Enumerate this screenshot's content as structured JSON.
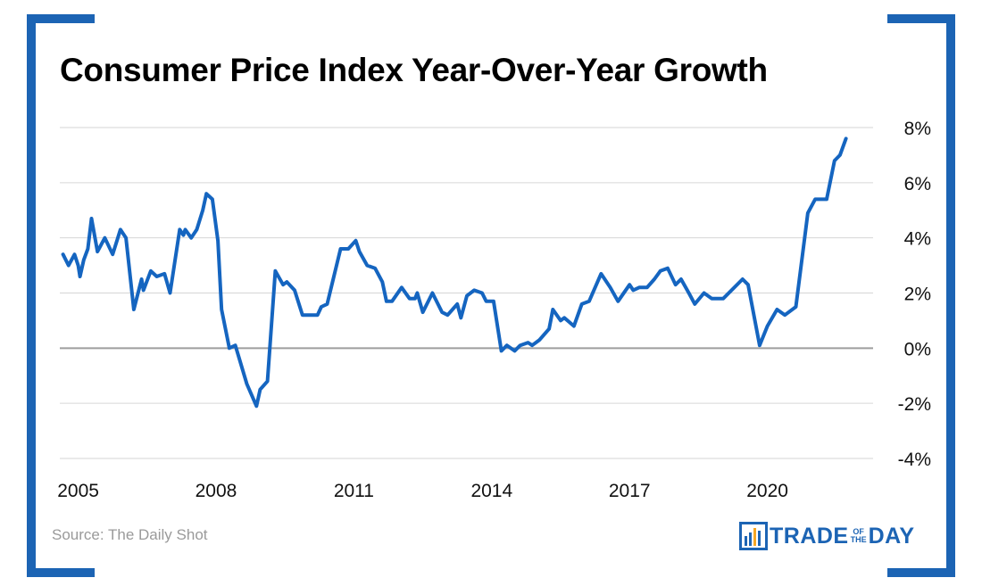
{
  "title": "Consumer Price Index Year-Over-Year Growth",
  "source": "Source: The Daily Shot",
  "logo": {
    "word1": "TRADE",
    "small1": "OF",
    "small2": "THE",
    "word2": "DAY",
    "icon": "bar-chart-logo-icon"
  },
  "colors": {
    "accent": "#1c64b4",
    "line": "#1565c0",
    "grid": "#d6d6d6",
    "zero_line": "#9e9e9e"
  },
  "chart_data": {
    "type": "line",
    "xlabel": "",
    "ylabel": "",
    "ylim": [
      -4,
      8
    ],
    "xlim": [
      2004.6,
      2022.3
    ],
    "y_ticks": [
      8,
      6,
      4,
      2,
      0,
      -2,
      -4
    ],
    "y_tick_labels": [
      "8%",
      "6%",
      "4%",
      "2%",
      "0%",
      "-2%",
      "-4%"
    ],
    "x_ticks": [
      2005,
      2008,
      2011,
      2014,
      2017,
      2020
    ],
    "x_tick_labels": [
      "2005",
      "2008",
      "2011",
      "2014",
      "2017",
      "2020"
    ],
    "grid": true,
    "legend": "none",
    "series": [
      {
        "points": [
          [
            2004.67,
            3.4
          ],
          [
            2004.79,
            3.0
          ],
          [
            2004.92,
            3.4
          ],
          [
            2005.0,
            3.0
          ],
          [
            2005.04,
            2.6
          ],
          [
            2005.12,
            3.2
          ],
          [
            2005.21,
            3.6
          ],
          [
            2005.29,
            4.7
          ],
          [
            2005.42,
            3.5
          ],
          [
            2005.58,
            4.0
          ],
          [
            2005.75,
            3.4
          ],
          [
            2005.92,
            4.3
          ],
          [
            2006.04,
            4.0
          ],
          [
            2006.21,
            1.4
          ],
          [
            2006.38,
            2.5
          ],
          [
            2006.42,
            2.1
          ],
          [
            2006.58,
            2.8
          ],
          [
            2006.71,
            2.6
          ],
          [
            2006.88,
            2.7
          ],
          [
            2007.0,
            2.0
          ],
          [
            2007.21,
            4.3
          ],
          [
            2007.29,
            4.1
          ],
          [
            2007.33,
            4.3
          ],
          [
            2007.46,
            4.0
          ],
          [
            2007.58,
            4.3
          ],
          [
            2007.71,
            5.0
          ],
          [
            2007.79,
            5.6
          ],
          [
            2007.92,
            5.4
          ],
          [
            2008.04,
            3.9
          ],
          [
            2008.12,
            1.4
          ],
          [
            2008.29,
            0.0
          ],
          [
            2008.42,
            0.1
          ],
          [
            2008.67,
            -1.3
          ],
          [
            2008.88,
            -2.1
          ],
          [
            2008.96,
            -1.5
          ],
          [
            2009.12,
            -1.2
          ],
          [
            2009.29,
            2.8
          ],
          [
            2009.46,
            2.3
          ],
          [
            2009.54,
            2.4
          ],
          [
            2009.71,
            2.1
          ],
          [
            2009.88,
            1.2
          ],
          [
            2010.04,
            1.2
          ],
          [
            2010.21,
            1.2
          ],
          [
            2010.29,
            1.5
          ],
          [
            2010.42,
            1.6
          ],
          [
            2010.71,
            3.6
          ],
          [
            2010.88,
            3.6
          ],
          [
            2011.04,
            3.9
          ],
          [
            2011.12,
            3.5
          ],
          [
            2011.29,
            3.0
          ],
          [
            2011.46,
            2.9
          ],
          [
            2011.62,
            2.4
          ],
          [
            2011.71,
            1.7
          ],
          [
            2011.83,
            1.7
          ],
          [
            2012.04,
            2.2
          ],
          [
            2012.21,
            1.8
          ],
          [
            2012.33,
            1.8
          ],
          [
            2012.38,
            2.0
          ],
          [
            2012.5,
            1.3
          ],
          [
            2012.71,
            2.0
          ],
          [
            2012.92,
            1.3
          ],
          [
            2013.04,
            1.2
          ],
          [
            2013.25,
            1.6
          ],
          [
            2013.33,
            1.1
          ],
          [
            2013.46,
            1.9
          ],
          [
            2013.62,
            2.1
          ],
          [
            2013.79,
            2.0
          ],
          [
            2013.88,
            1.7
          ],
          [
            2014.04,
            1.7
          ],
          [
            2014.21,
            -0.1
          ],
          [
            2014.33,
            0.1
          ],
          [
            2014.5,
            -0.1
          ],
          [
            2014.62,
            0.1
          ],
          [
            2014.79,
            0.2
          ],
          [
            2014.88,
            0.1
          ],
          [
            2015.04,
            0.3
          ],
          [
            2015.25,
            0.7
          ],
          [
            2015.33,
            1.4
          ],
          [
            2015.5,
            1.0
          ],
          [
            2015.58,
            1.1
          ],
          [
            2015.79,
            0.8
          ],
          [
            2015.96,
            1.6
          ],
          [
            2016.12,
            1.7
          ],
          [
            2016.38,
            2.7
          ],
          [
            2016.58,
            2.2
          ],
          [
            2016.75,
            1.7
          ],
          [
            2017.0,
            2.3
          ],
          [
            2017.08,
            2.1
          ],
          [
            2017.21,
            2.2
          ],
          [
            2017.38,
            2.2
          ],
          [
            2017.54,
            2.5
          ],
          [
            2017.67,
            2.8
          ],
          [
            2017.83,
            2.9
          ],
          [
            2018.0,
            2.3
          ],
          [
            2018.12,
            2.5
          ],
          [
            2018.29,
            2.0
          ],
          [
            2018.42,
            1.6
          ],
          [
            2018.62,
            2.0
          ],
          [
            2018.79,
            1.8
          ],
          [
            2018.88,
            1.8
          ],
          [
            2019.04,
            1.8
          ],
          [
            2019.46,
            2.5
          ],
          [
            2019.58,
            2.3
          ],
          [
            2019.83,
            0.1
          ],
          [
            2020.0,
            0.8
          ],
          [
            2020.21,
            1.4
          ],
          [
            2020.38,
            1.2
          ],
          [
            2020.62,
            1.5
          ],
          [
            2020.88,
            4.9
          ],
          [
            2021.04,
            5.4
          ],
          [
            2021.29,
            5.4
          ],
          [
            2021.46,
            6.8
          ],
          [
            2021.58,
            7.0
          ],
          [
            2021.71,
            7.6
          ]
        ]
      }
    ]
  }
}
